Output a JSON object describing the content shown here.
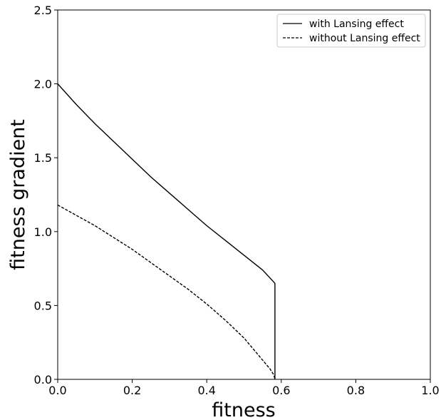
{
  "chart_data": {
    "type": "line",
    "title": "",
    "xlabel": "fitness",
    "ylabel": "fitness gradient",
    "xlim": [
      0.0,
      1.0
    ],
    "ylim": [
      0.0,
      2.5
    ],
    "xticks": [
      "0.0",
      "0.2",
      "0.4",
      "0.6",
      "0.8",
      "1.0"
    ],
    "yticks": [
      "0.0",
      "0.5",
      "1.0",
      "1.5",
      "2.0",
      "2.5"
    ],
    "grid": false,
    "legend_position": "top-right",
    "series": [
      {
        "name": "with Lansing effect",
        "style": "solid",
        "color": "#000000",
        "x": [
          0.0,
          0.05,
          0.1,
          0.15,
          0.2,
          0.25,
          0.3,
          0.35,
          0.4,
          0.45,
          0.5,
          0.55,
          0.583,
          0.583
        ],
        "y": [
          2.0,
          1.86,
          1.73,
          1.61,
          1.49,
          1.37,
          1.26,
          1.15,
          1.04,
          0.94,
          0.84,
          0.74,
          0.65,
          0.0
        ]
      },
      {
        "name": "without Lansing effect",
        "style": "dashed",
        "color": "#000000",
        "x": [
          0.0,
          0.05,
          0.1,
          0.15,
          0.2,
          0.25,
          0.3,
          0.35,
          0.4,
          0.45,
          0.5,
          0.52,
          0.54,
          0.56,
          0.57,
          0.58,
          0.583
        ],
        "y": [
          1.18,
          1.11,
          1.04,
          0.96,
          0.88,
          0.79,
          0.7,
          0.61,
          0.51,
          0.4,
          0.28,
          0.22,
          0.16,
          0.1,
          0.07,
          0.03,
          0.0
        ]
      }
    ]
  }
}
